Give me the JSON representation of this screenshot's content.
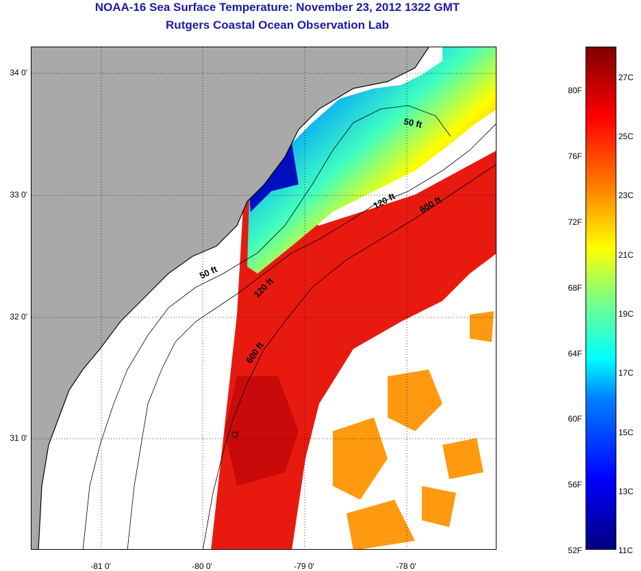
{
  "title": "NOAA-16 Sea Surface Temperature:  November 23, 2012 1322 GMT",
  "subtitle": "Rutgers Coastal Ocean Observation Lab",
  "map": {
    "lat_ticks": [
      "34 0'",
      "33 0'",
      "32 0'",
      "31 0'"
    ],
    "lon_ticks": [
      "-81 0'",
      "-80 0'",
      "-79 0'",
      "-78 0'"
    ],
    "contours": [
      "50 ft",
      "120 ft",
      "600 ft"
    ],
    "colors": {
      "land": "#a9a9a9",
      "no_data": "#ffffff",
      "warm": "#e01010",
      "cool": "#0030ff"
    }
  },
  "colorbar": {
    "fahrenheit": [
      "80F",
      "76F",
      "72F",
      "68F",
      "64F",
      "60F",
      "56F",
      "52F"
    ],
    "celsius": [
      "27C",
      "25C",
      "23C",
      "21C",
      "19C",
      "17C",
      "15C",
      "13C",
      "11C"
    ]
  }
}
